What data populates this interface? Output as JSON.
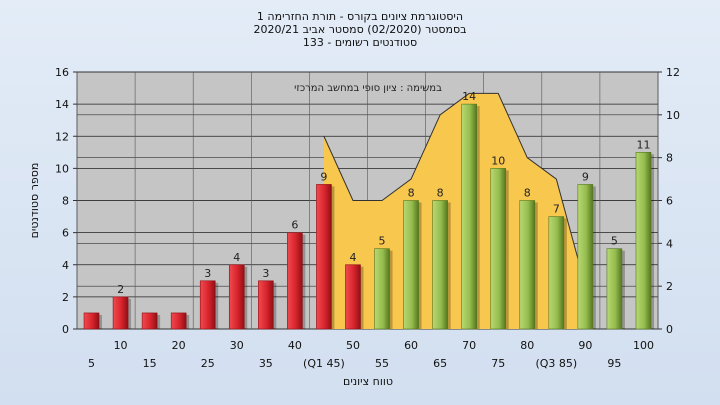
{
  "titles": [
    "היסטוגרמת ציונים בקורס - תורת החזרימה 1",
    "בסמסטר  (02/2020)  סמסטר אביב 2020/21",
    "סטודנטים רשומים - 133"
  ],
  "chart_data": {
    "type": "bar",
    "ylabel": "מספר סטודנטים",
    "xlabel": "טווח ציונים",
    "annotation": "במשימה : ציון סופי במחשב המרכזי",
    "ylim": [
      0,
      16
    ],
    "y2lim": [
      0,
      12
    ],
    "yticks": [
      0,
      2,
      4,
      6,
      8,
      10,
      12,
      14,
      16
    ],
    "y2ticks": [
      0,
      2,
      4,
      6,
      8,
      10,
      12
    ],
    "grid": true,
    "categories": [
      "5",
      "10",
      "15",
      "20",
      "25",
      "30",
      "35",
      "40",
      "(Q1 45)",
      "50",
      "55",
      "60",
      "65",
      "70",
      "75",
      "80",
      "(Q3 85)",
      "90",
      "95",
      "100"
    ],
    "values": [
      1,
      2,
      1,
      1,
      3,
      4,
      3,
      6,
      9,
      4,
      5,
      8,
      8,
      14,
      10,
      8,
      7,
      9,
      5,
      11
    ],
    "value_labels": [
      "",
      "2",
      "",
      "",
      "3",
      "4",
      "3",
      "6",
      "9",
      "4",
      "5",
      "8",
      "8",
      "14",
      "10",
      "8",
      "7",
      "9",
      "5",
      "11"
    ],
    "colors": {
      "red": "#d8242c",
      "red_dark": "#8e1016",
      "green": "#95bd4e",
      "green_dark": "#56761f",
      "area": "#f8c74d",
      "plot_bg": "#c5c5c5"
    },
    "red_count": 10,
    "area_series": {
      "start_index": 8,
      "values_secondary": [
        9,
        6,
        6,
        7,
        10,
        11,
        11,
        8,
        7,
        2
      ]
    }
  }
}
